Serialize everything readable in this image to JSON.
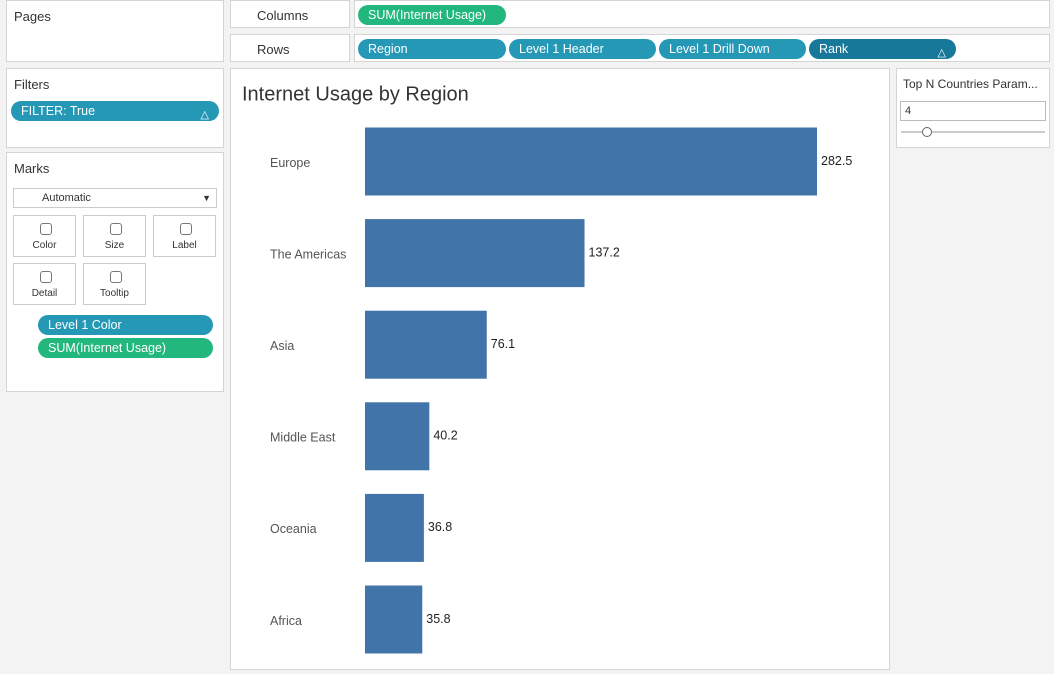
{
  "pages": {
    "title": "Pages"
  },
  "filters": {
    "title": "Filters",
    "pills": [
      "FILTER: True"
    ]
  },
  "marks": {
    "title": "Marks",
    "mark_type": "Automatic",
    "cards": [
      "Color",
      "Size",
      "Label",
      "Detail",
      "Tooltip"
    ],
    "pills": [
      "Level 1 Color",
      "SUM(Internet Usage)"
    ]
  },
  "columns": {
    "label": "Columns",
    "pills": [
      "SUM(Internet Usage)"
    ]
  },
  "rows": {
    "label": "Rows",
    "pills": [
      "Region",
      "Level 1 Header",
      "Level 1 Drill Down",
      "Rank"
    ]
  },
  "parameter": {
    "title": "Top N Countries Param...",
    "value": 4
  },
  "chart_data": {
    "type": "bar",
    "orientation": "horizontal",
    "title": "Internet Usage by Region",
    "categories": [
      "Europe",
      "The Americas",
      "Asia",
      "Middle East",
      "Oceania",
      "Africa"
    ],
    "values": [
      282.5,
      137.2,
      76.1,
      40.2,
      36.8,
      35.8
    ],
    "color": "#4174a8"
  }
}
